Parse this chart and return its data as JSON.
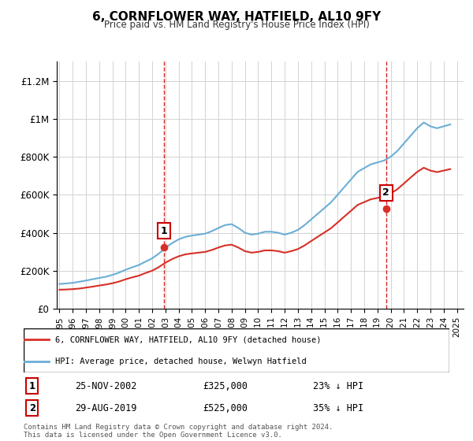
{
  "title": "6, CORNFLOWER WAY, HATFIELD, AL10 9FY",
  "subtitle": "Price paid vs. HM Land Registry's House Price Index (HPI)",
  "xlabel": "",
  "ylabel": "",
  "ylim": [
    0,
    1300000
  ],
  "yticks": [
    0,
    200000,
    400000,
    600000,
    800000,
    1000000,
    1200000
  ],
  "ytick_labels": [
    "£0",
    "£200K",
    "£400K",
    "£600K",
    "£800K",
    "£1M",
    "£1.2M"
  ],
  "hpi_color": "#6baed6",
  "price_color": "#d73027",
  "vline_color": "#cc0000",
  "annotation_box_color": "#cc0000",
  "legend_entry1": "6, CORNFLOWER WAY, HATFIELD, AL10 9FY (detached house)",
  "legend_entry2": "HPI: Average price, detached house, Welwyn Hatfield",
  "sale1_label": "1",
  "sale1_date": "25-NOV-2002",
  "sale1_price": "£325,000",
  "sale1_hpi": "23% ↓ HPI",
  "sale2_label": "2",
  "sale2_date": "29-AUG-2019",
  "sale2_price": "£525,000",
  "sale2_hpi": "35% ↓ HPI",
  "footnote": "Contains HM Land Registry data © Crown copyright and database right 2024.\nThis data is licensed under the Open Government Licence v3.0.",
  "sale1_year": 2002.9,
  "sale2_year": 2019.66,
  "sale1_value": 325000,
  "sale2_value": 525000,
  "hpi_years": [
    1995,
    1995.5,
    1996,
    1996.5,
    1997,
    1997.5,
    1998,
    1998.5,
    1999,
    1999.5,
    2000,
    2000.5,
    2001,
    2001.5,
    2002,
    2002.5,
    2003,
    2003.5,
    2004,
    2004.5,
    2005,
    2005.5,
    2006,
    2006.5,
    2007,
    2007.5,
    2008,
    2008.5,
    2009,
    2009.5,
    2010,
    2010.5,
    2011,
    2011.5,
    2012,
    2012.5,
    2013,
    2013.5,
    2014,
    2014.5,
    2015,
    2015.5,
    2016,
    2016.5,
    2017,
    2017.5,
    2018,
    2018.5,
    2019,
    2019.5,
    2020,
    2020.5,
    2021,
    2021.5,
    2022,
    2022.5,
    2023,
    2023.5,
    2024,
    2024.5
  ],
  "hpi_values": [
    130000,
    133000,
    136000,
    142000,
    148000,
    155000,
    162000,
    168000,
    178000,
    190000,
    205000,
    218000,
    230000,
    248000,
    265000,
    290000,
    320000,
    345000,
    365000,
    378000,
    385000,
    390000,
    395000,
    408000,
    425000,
    440000,
    445000,
    425000,
    400000,
    390000,
    395000,
    405000,
    405000,
    400000,
    390000,
    400000,
    415000,
    440000,
    470000,
    500000,
    530000,
    560000,
    600000,
    640000,
    680000,
    720000,
    740000,
    760000,
    770000,
    780000,
    800000,
    830000,
    870000,
    910000,
    950000,
    980000,
    960000,
    950000,
    960000,
    970000
  ],
  "price_years": [
    1995,
    1995.5,
    1996,
    1996.5,
    1997,
    1997.5,
    1998,
    1998.5,
    1999,
    1999.5,
    2000,
    2000.5,
    2001,
    2001.5,
    2002,
    2002.5,
    2003,
    2003.5,
    2004,
    2004.5,
    2005,
    2005.5,
    2006,
    2006.5,
    2007,
    2007.5,
    2008,
    2008.5,
    2009,
    2009.5,
    2010,
    2010.5,
    2011,
    2011.5,
    2012,
    2012.5,
    2013,
    2013.5,
    2014,
    2014.5,
    2015,
    2015.5,
    2016,
    2016.5,
    2017,
    2017.5,
    2018,
    2018.5,
    2019,
    2019.5,
    2020,
    2020.5,
    2021,
    2021.5,
    2022,
    2022.5,
    2023,
    2023.5,
    2024,
    2024.5
  ],
  "price_values": [
    100000,
    101000,
    103000,
    106000,
    111000,
    116000,
    122000,
    127000,
    134000,
    143000,
    155000,
    165000,
    174000,
    188000,
    200000,
    219000,
    242000,
    261000,
    276000,
    286000,
    291000,
    295000,
    299000,
    309000,
    322000,
    333000,
    337000,
    322000,
    303000,
    295000,
    299000,
    307000,
    307000,
    303000,
    295000,
    303000,
    314000,
    333000,
    356000,
    379000,
    401000,
    424000,
    454000,
    485000,
    515000,
    546000,
    561000,
    576000,
    583000,
    591000,
    606000,
    629000,
    659000,
    690000,
    720000,
    742000,
    727000,
    719000,
    727000,
    735000
  ],
  "xtick_years": [
    1995,
    1996,
    1997,
    1998,
    1999,
    2000,
    2001,
    2002,
    2003,
    2004,
    2005,
    2006,
    2007,
    2008,
    2009,
    2010,
    2011,
    2012,
    2013,
    2014,
    2015,
    2016,
    2017,
    2018,
    2019,
    2020,
    2021,
    2022,
    2023,
    2024,
    2025
  ],
  "xlim": [
    1994.8,
    2025.5
  ]
}
